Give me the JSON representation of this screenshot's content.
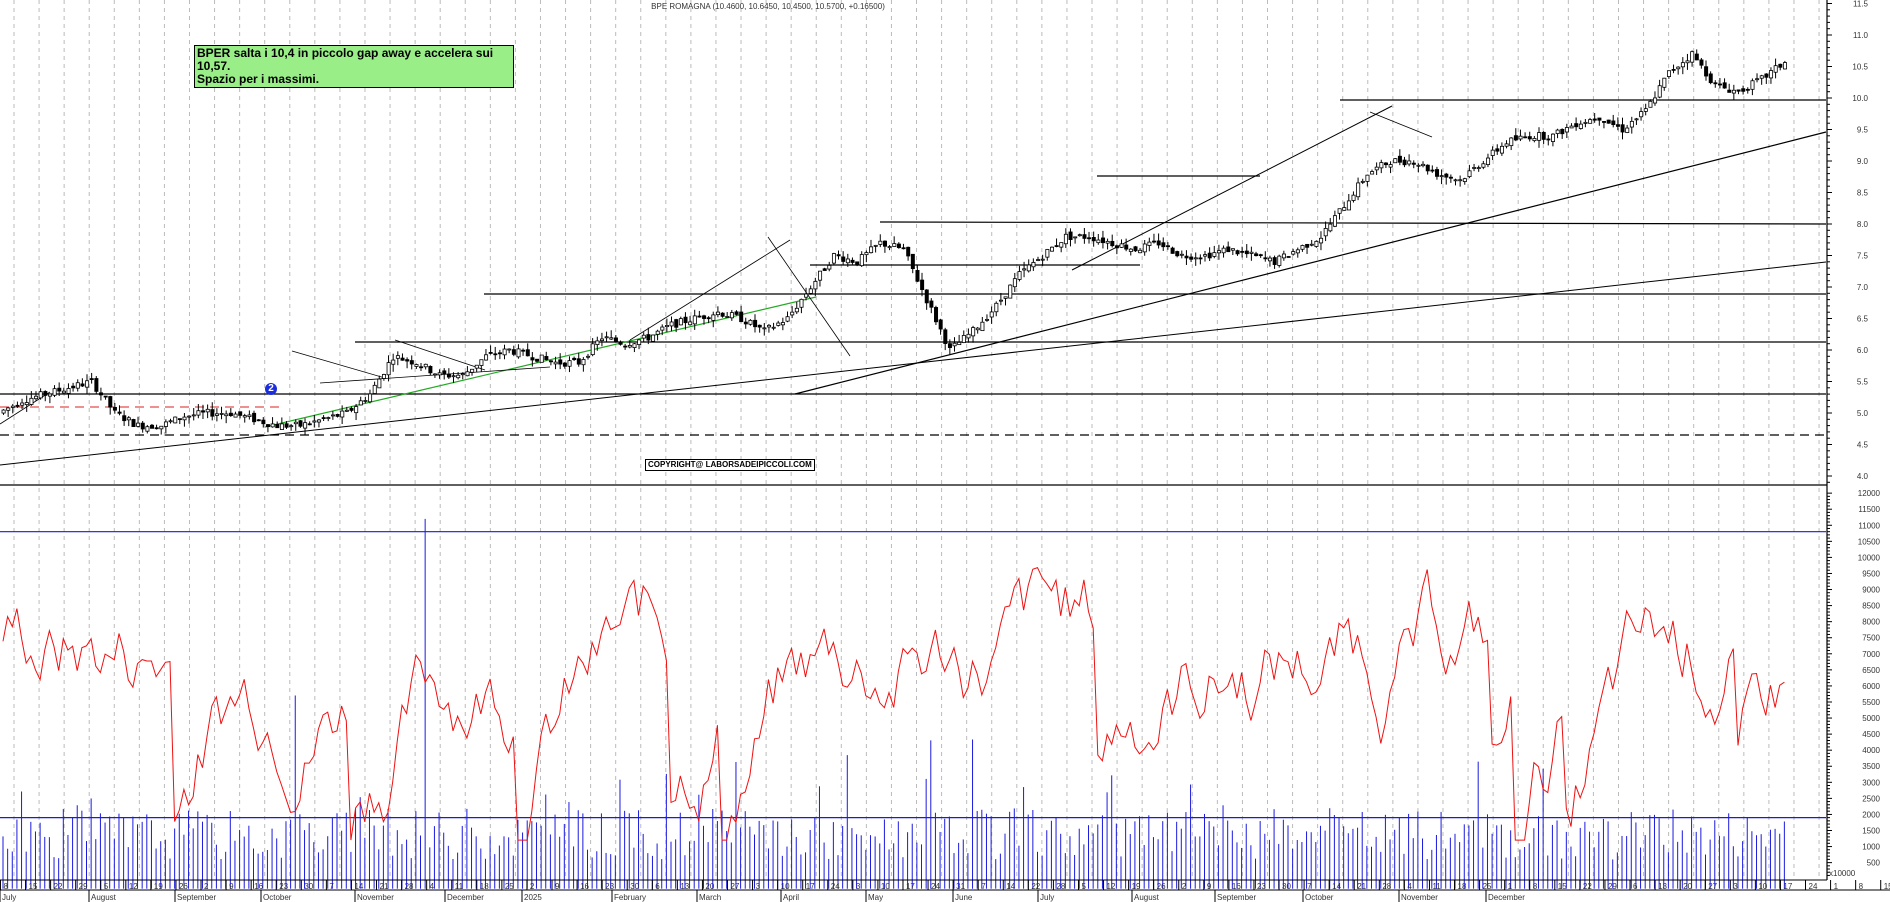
{
  "header": {
    "title": "BPE ROMAGNA (10.4600, 10.6450, 10.4500, 10.5700, +0.16500)"
  },
  "annotation": {
    "line1": "BPER salta i 10,4 in piccolo gap away e accelera sui 10,57.",
    "line2": "Spazio per i massimi."
  },
  "copyright": "COPYRIGHT@ LABORSADEIPICCOLI.COM",
  "badge": "2",
  "colors": {
    "background": "#ffffff",
    "grid": "#bbbbbb",
    "candle": "#000000",
    "trendline": "#000000",
    "green_trendline": "#22aa22",
    "red_dashed": "#dd2222",
    "oscillator": "#ee1111",
    "volume": "#1a1ae0",
    "annotation_bg": "#99ee88"
  },
  "volume_unit": "x10000",
  "chart_data": [
    {
      "type": "candlestick",
      "title": "BPE ROMAGNA (10.4600, 10.6450, 10.4500, 10.5700, +0.16500)",
      "ylim": [
        3.8,
        11.6
      ],
      "yticks": [
        "4.0",
        "4.5",
        "5.0",
        "5.5",
        "6.0",
        "6.5",
        "7.0",
        "7.5",
        "8.0",
        "8.5",
        "9.0",
        "9.5",
        "10.0",
        "10.5",
        "11.0",
        "11.5"
      ],
      "grid": "vertical dashed weekly",
      "last": {
        "open": 10.46,
        "high": 10.645,
        "low": 10.45,
        "close": 10.57,
        "change": 0.165
      },
      "horizontal_levels": [
        10.03,
        8.02,
        7.37,
        6.92,
        6.15,
        5.32,
        4.64,
        8.8,
        5.1
      ],
      "closes_weekly_approx": [
        5.0,
        5.2,
        5.3,
        5.4,
        5.5,
        5.0,
        4.8,
        4.8,
        4.95,
        5.0,
        5.0,
        4.9,
        4.8,
        4.8,
        4.9,
        5.0,
        5.3,
        5.9,
        5.8,
        5.6,
        5.6,
        5.9,
        6.0,
        5.9,
        5.8,
        5.8,
        6.2,
        6.1,
        6.2,
        6.4,
        6.5,
        6.6,
        6.5,
        6.3,
        6.5,
        7.0,
        7.5,
        7.4,
        7.7,
        7.6,
        6.8,
        6.0,
        6.3,
        6.7,
        7.2,
        7.5,
        7.8,
        7.8,
        7.7,
        7.6,
        7.7,
        7.5,
        7.5,
        7.6,
        7.5,
        7.4,
        7.6,
        7.8,
        8.3,
        8.8,
        9.0,
        9.0,
        8.8,
        8.7,
        9.0,
        9.3,
        9.4,
        9.4,
        9.6,
        9.7,
        9.5,
        9.8,
        10.4,
        10.7,
        10.2,
        10.1,
        10.3,
        10.57
      ]
    },
    {
      "type": "line",
      "name": "oscillator",
      "ylim": [
        0,
        12500
      ],
      "yticks": [
        "500",
        "1000",
        "1500",
        "2000",
        "2500",
        "3000",
        "3500",
        "4000",
        "4500",
        "5000",
        "5500",
        "6000",
        "6500",
        "7000",
        "7500",
        "8000",
        "8500",
        "9000",
        "9500",
        "10000",
        "10500",
        "11000",
        "11500",
        "12000"
      ],
      "reference_lines": [
        10800,
        1900
      ]
    },
    {
      "type": "bar",
      "name": "volume",
      "unit": "x10000"
    }
  ],
  "x_axis": {
    "weeks": [
      "8",
      "15",
      "22",
      "29",
      "5",
      "12",
      "19",
      "26",
      "2",
      "9",
      "16",
      "23",
      "30",
      "7",
      "14",
      "21",
      "28",
      "4",
      "11",
      "18",
      "25",
      "2",
      "9",
      "16",
      "23",
      "30",
      "6",
      "13",
      "20",
      "27",
      "3",
      "10",
      "17",
      "24",
      "3",
      "10",
      "17",
      "24",
      "31",
      "7",
      "14",
      "22",
      "28",
      "5",
      "12",
      "19",
      "26",
      "2",
      "9",
      "16",
      "23",
      "30",
      "7",
      "14",
      "21",
      "28",
      "4",
      "11",
      "18",
      "25",
      "1",
      "8",
      "15",
      "22",
      "29",
      "6",
      "13",
      "20",
      "27",
      "3",
      "10",
      "17",
      "24",
      "1",
      "8",
      "15"
    ],
    "months": [
      {
        "label": "July",
        "x": 0
      },
      {
        "label": "August",
        "x": 89
      },
      {
        "label": "September",
        "x": 175
      },
      {
        "label": "October",
        "x": 261
      },
      {
        "label": "November",
        "x": 355
      },
      {
        "label": "December",
        "x": 445
      },
      {
        "label": "2025",
        "x": 522
      },
      {
        "label": "February",
        "x": 612
      },
      {
        "label": "March",
        "x": 697
      },
      {
        "label": "April",
        "x": 781
      },
      {
        "label": "May",
        "x": 866
      },
      {
        "label": "June",
        "x": 953
      },
      {
        "label": "July",
        "x": 1038
      },
      {
        "label": "August",
        "x": 1132
      },
      {
        "label": "September",
        "x": 1215
      },
      {
        "label": "October",
        "x": 1303
      },
      {
        "label": "November",
        "x": 1399
      },
      {
        "label": "December",
        "x": 1486
      }
    ]
  }
}
